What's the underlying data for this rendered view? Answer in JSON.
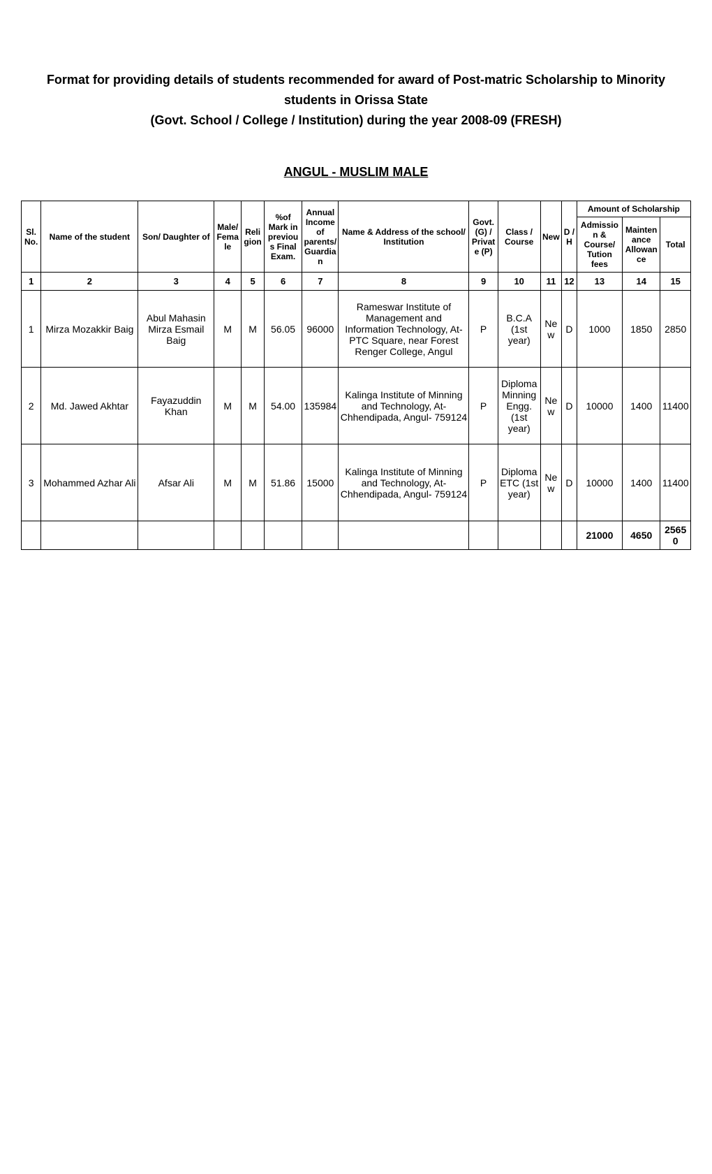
{
  "title_line1": "Format for providing details of students recommended for award of Post-matric Scholarship to Minority students in Orissa State",
  "title_line2": "(Govt. School / College / Institution) during the year 2008-09 (FRESH)",
  "section_heading": "ANGUL - MUSLIM MALE",
  "headers": {
    "sl_no": "Sl. No.",
    "name": "Name of the student",
    "parent": "Son/ Daughter of",
    "gender": "Male/ Female",
    "religion": "Religion",
    "marks": "%of Mark in previous Final Exam.",
    "income": "Annual Income of parents/ Guardian",
    "institution": "Name & Address of the school/ Institution",
    "govt_pvt": "Govt. (G) / Private (P)",
    "class": "Class / Course",
    "new": "New",
    "dh": "D / H",
    "amount_header": "Amount of Scholarship",
    "admission": "Admission & Course/ Tution fees",
    "maintenance": "Maintenance Allowance",
    "total": "Total"
  },
  "col_numbers": [
    "1",
    "2",
    "3",
    "4",
    "5",
    "6",
    "7",
    "8",
    "9",
    "10",
    "11",
    "12",
    "13",
    "14",
    "15"
  ],
  "rows": [
    {
      "sl": "1",
      "name": "Mirza Mozakkir Baig",
      "parent": "Abul Mahasin Mirza Esmail Baig",
      "gender": "M",
      "religion": "M",
      "marks": "56.05",
      "income": "96000",
      "institution": "Rameswar Institute of Management and Information Technology, At- PTC Square, near Forest Renger College, Angul",
      "govt_pvt": "P",
      "class": "B.C.A (1st year)",
      "new": "New",
      "dh": "D",
      "admission": "1000",
      "maintenance": "1850",
      "total": "2850"
    },
    {
      "sl": "2",
      "name": "Md. Jawed Akhtar",
      "parent": "Fayazuddin Khan",
      "gender": "M",
      "religion": "M",
      "marks": "54.00",
      "income": "135984",
      "institution": "Kalinga Institute of Minning and Technology, At- Chhendipada, Angul- 759124",
      "govt_pvt": "P",
      "class": "Diploma Minning Engg. (1st year)",
      "new": "New",
      "dh": "D",
      "admission": "10000",
      "maintenance": "1400",
      "total": "11400"
    },
    {
      "sl": "3",
      "name": "Mohammed Azhar Ali",
      "parent": "Afsar Ali",
      "gender": "M",
      "religion": "M",
      "marks": "51.86",
      "income": "15000",
      "institution": "Kalinga Institute of Minning and Technology, At- Chhendipada, Angul- 759124",
      "govt_pvt": "P",
      "class": "Diploma ETC (1st year)",
      "new": "New",
      "dh": "D",
      "admission": "10000",
      "maintenance": "1400",
      "total": "11400"
    }
  ],
  "totals": {
    "admission": "21000",
    "maintenance": "4650",
    "total": "25650"
  }
}
